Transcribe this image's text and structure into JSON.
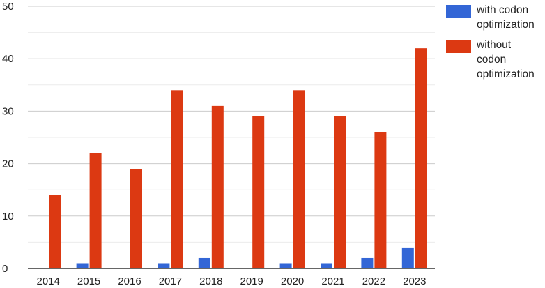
{
  "chart_data": {
    "type": "bar",
    "categories": [
      "2014",
      "2015",
      "2016",
      "2017",
      "2018",
      "2019",
      "2020",
      "2021",
      "2022",
      "2023"
    ],
    "series": [
      {
        "name": "with codon optimization",
        "values": [
          0,
          1,
          0,
          1,
          2,
          0,
          1,
          1,
          2,
          4
        ],
        "color": "#3366d6"
      },
      {
        "name": "without codon optimization",
        "values": [
          14,
          22,
          19,
          34,
          31,
          29,
          34,
          29,
          26,
          42
        ],
        "color": "#dc3912"
      }
    ],
    "yticks": [
      "0",
      "10",
      "20",
      "30",
      "40",
      "50"
    ],
    "ylim": [
      0,
      50
    ],
    "grid": true,
    "legend_position": "right"
  }
}
